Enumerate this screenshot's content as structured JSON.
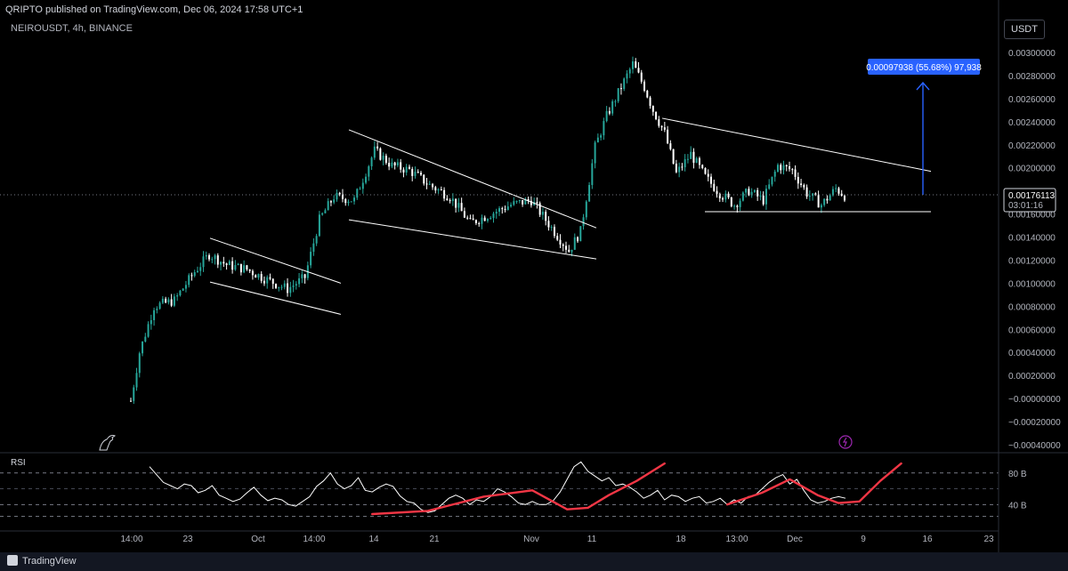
{
  "header": {
    "published_line": "QRIPTO published on TradingView.com, Dec 06, 2024 17:58 UTC+1",
    "symbol_line": "NEIROUSDT, 4h, BINANCE",
    "currency": "USDT"
  },
  "footer": {
    "brand": "TradingView"
  },
  "colors": {
    "up": "#26a69a",
    "down": "#ffffff",
    "rsi_line": "#ffffff",
    "rsi_highlight": "#f23645",
    "target": "#2962ff"
  },
  "chart_data": [
    {
      "type": "candlestick",
      "title": "",
      "x_tick_labels": [
        "14:00",
        "23",
        "Oct",
        "14:00",
        "14",
        "21",
        "Nov",
        "11",
        "18",
        "13:00",
        "Dec",
        "9",
        "16",
        "23"
      ],
      "y_tick_labels": [
        "0.00300000",
        "0.00280000",
        "0.00260000",
        "0.00240000",
        "0.00220000",
        "0.00200000",
        "0.00180000",
        "0.00160000",
        "0.00140000",
        "0.00120000",
        "0.00100000",
        "0.00080000",
        "0.00060000",
        "0.00040000",
        "0.00020000",
        "−0.00000000",
        "−0.00020000",
        "−0.00040000"
      ],
      "ylim": [
        -0.00044,
        0.0031
      ],
      "grid": false,
      "last_price": {
        "value": "0.00176113",
        "countdown": "03:01:16"
      },
      "target_label": "0.00097938 (55.68%) 97,938",
      "price_path": [
        [
          0,
          -2e-05
        ],
        [
          3,
          0.0004
        ],
        [
          8,
          0.0008
        ],
        [
          15,
          0.00085
        ],
        [
          22,
          0.0011
        ],
        [
          27,
          0.00125
        ],
        [
          33,
          0.00116
        ],
        [
          40,
          0.00112
        ],
        [
          47,
          0.00103
        ],
        [
          54,
          0.00095
        ],
        [
          60,
          0.00105
        ],
        [
          65,
          0.00155
        ],
        [
          70,
          0.00175
        ],
        [
          77,
          0.00172
        ],
        [
          84,
          0.00215
        ],
        [
          90,
          0.00202
        ],
        [
          96,
          0.00198
        ],
        [
          103,
          0.00185
        ],
        [
          110,
          0.00175
        ],
        [
          117,
          0.00152
        ],
        [
          124,
          0.0016
        ],
        [
          131,
          0.00168
        ],
        [
          138,
          0.00172
        ],
        [
          145,
          0.00148
        ],
        [
          151,
          0.00128
        ],
        [
          155,
          0.00145
        ],
        [
          160,
          0.00218
        ],
        [
          164,
          0.00245
        ],
        [
          168,
          0.00265
        ],
        [
          173,
          0.0029
        ],
        [
          177,
          0.0027
        ],
        [
          180,
          0.0025
        ],
        [
          184,
          0.0023
        ],
        [
          188,
          0.00195
        ],
        [
          193,
          0.00212
        ],
        [
          198,
          0.00192
        ],
        [
          203,
          0.00178
        ],
        [
          208,
          0.00168
        ],
        [
          213,
          0.0018
        ],
        [
          218,
          0.00172
        ],
        [
          223,
          0.00202
        ],
        [
          228,
          0.00198
        ],
        [
          233,
          0.00178
        ],
        [
          238,
          0.00168
        ],
        [
          243,
          0.00182
        ],
        [
          246,
          0.00176
        ]
      ],
      "trend_lines": [
        {
          "from": [
            "c",
            0.00139
          ],
          "to": [
            "d",
            0.001
          ],
          "kind": "channel-top"
        },
        {
          "from": [
            "c",
            0.00101
          ],
          "to": [
            "d",
            0.00073
          ],
          "kind": "channel-bottom"
        },
        {
          "from": [
            "e",
            0.00233
          ],
          "to": [
            "f",
            0.00148
          ],
          "kind": "wedge-top"
        },
        {
          "from": [
            "e",
            0.00155
          ],
          "to": [
            "f",
            0.00121
          ],
          "kind": "wedge-bottom"
        },
        {
          "from": [
            "g",
            0.00243
          ],
          "to": [
            "h",
            0.00197
          ],
          "kind": "triangle-top"
        },
        {
          "from": [
            "i",
            0.00162
          ],
          "to": [
            "h",
            0.00162
          ],
          "kind": "triangle-support"
        }
      ]
    },
    {
      "type": "line",
      "title": "RSI",
      "levels": [
        {
          "value": 80,
          "label": "80 B"
        },
        {
          "value": 40,
          "label": "40 B"
        }
      ],
      "values": [
        88,
        78,
        68,
        64,
        60,
        66,
        64,
        55,
        58,
        64,
        52,
        48,
        44,
        47,
        55,
        62,
        52,
        45,
        48,
        46,
        40,
        38,
        44,
        50,
        63,
        70,
        80,
        66,
        60,
        64,
        74,
        58,
        56,
        62,
        66,
        63,
        51,
        44,
        42,
        34,
        30,
        32,
        40,
        48,
        52,
        48,
        40,
        46,
        44,
        50,
        60,
        56,
        50,
        42,
        40,
        44,
        40,
        40,
        45,
        56,
        72,
        88,
        94,
        82,
        76,
        70,
        74,
        64,
        66,
        62,
        56,
        48,
        52,
        58,
        46,
        52,
        50,
        44,
        48,
        50,
        42,
        44,
        48,
        40,
        46,
        42,
        50,
        52,
        60,
        68,
        74,
        78,
        66,
        72,
        58,
        46,
        42,
        44,
        48,
        50,
        48
      ],
      "highlight_curves": [
        [
          [
            32,
            28
          ],
          [
            40,
            32
          ],
          [
            48,
            50
          ],
          [
            55,
            58
          ],
          [
            60,
            34
          ],
          [
            63,
            36
          ],
          [
            66,
            52
          ],
          [
            70,
            70
          ],
          [
            74,
            92
          ]
        ],
        [
          [
            83,
            40
          ],
          [
            88,
            55
          ],
          [
            92,
            72
          ],
          [
            96,
            52
          ],
          [
            99,
            42
          ],
          [
            102,
            44
          ],
          [
            105,
            70
          ],
          [
            108,
            92
          ]
        ]
      ]
    }
  ]
}
